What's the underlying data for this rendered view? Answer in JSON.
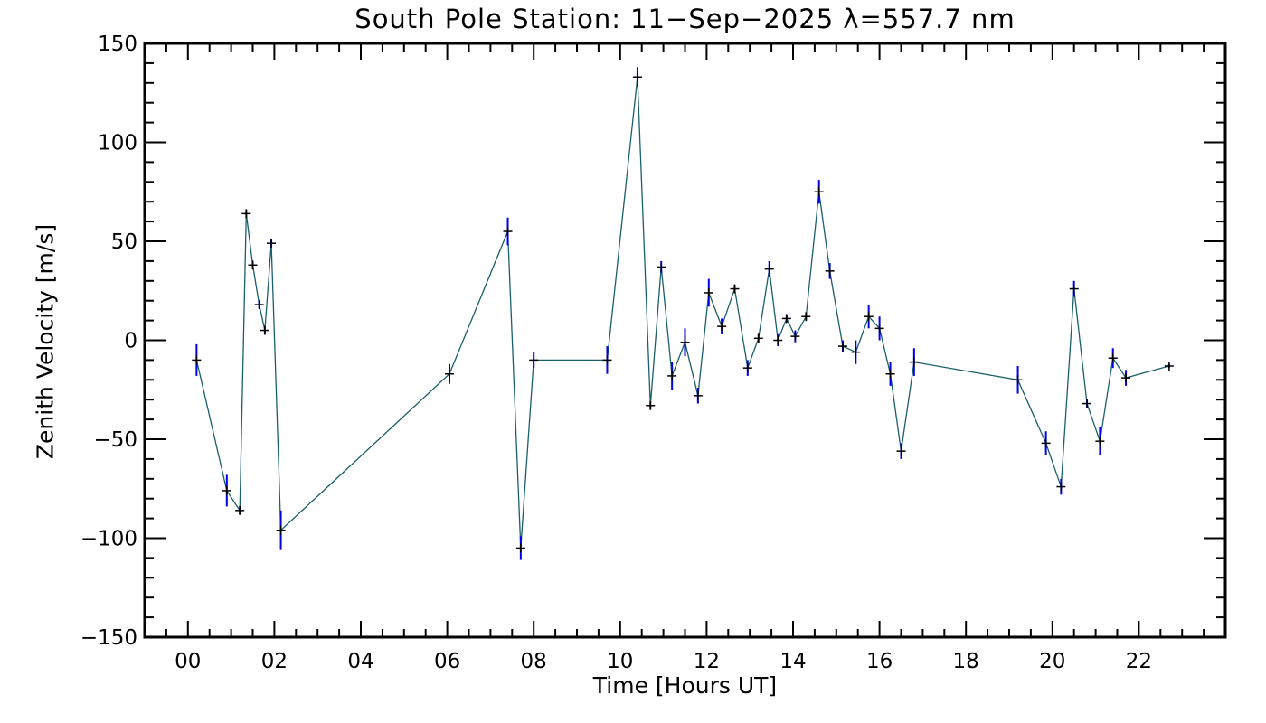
{
  "chart_data": {
    "type": "line",
    "title": "South Pole Station: 11−Sep−2025 λ=557.7 nm",
    "xlabel": "Time [Hours UT]",
    "ylabel": "Zenith Velocity [m/s]",
    "xlim": [
      -1,
      24
    ],
    "ylim": [
      -150,
      150
    ],
    "x_ticks": [
      0,
      2,
      4,
      6,
      8,
      10,
      12,
      14,
      16,
      18,
      20,
      22
    ],
    "x_tick_labels": [
      "00",
      "02",
      "04",
      "06",
      "08",
      "10",
      "12",
      "14",
      "16",
      "18",
      "20",
      "22"
    ],
    "y_ticks": [
      150,
      100,
      50,
      0,
      -50,
      -100,
      -150
    ],
    "y_tick_labels": [
      "150",
      "100",
      "50",
      "0",
      "−50",
      "−100",
      "−150"
    ],
    "grid": false,
    "colors": {
      "line": "#1a5f6a",
      "error_bar": "#0000ee",
      "marker": "#000000",
      "axis": "#000000"
    },
    "series": [
      {
        "points": [
          {
            "x": 0.2,
            "y": -10,
            "err": 8
          },
          {
            "x": 0.9,
            "y": -76,
            "err": 8
          },
          {
            "x": 1.2,
            "y": -86,
            "err": 2
          },
          {
            "x": 1.35,
            "y": 64,
            "err": 2
          },
          {
            "x": 1.5,
            "y": 38,
            "err": 2
          },
          {
            "x": 1.65,
            "y": 18,
            "err": 2
          },
          {
            "x": 1.78,
            "y": 5,
            "err": 2
          },
          {
            "x": 1.93,
            "y": 49,
            "err": 2
          },
          {
            "x": 2.15,
            "y": -96,
            "err": 10
          },
          {
            "x": 6.05,
            "y": -17,
            "err": 5
          },
          {
            "x": 7.4,
            "y": 55,
            "err": 7
          },
          {
            "x": 7.7,
            "y": -105,
            "err": 6
          },
          {
            "x": 8.0,
            "y": -10,
            "err": 4
          },
          {
            "x": 9.7,
            "y": -10,
            "err": 7
          },
          {
            "x": 10.4,
            "y": 133,
            "err": 5
          },
          {
            "x": 10.7,
            "y": -33,
            "err": 2
          },
          {
            "x": 10.95,
            "y": 37,
            "err": 3
          },
          {
            "x": 11.2,
            "y": -18,
            "err": 7
          },
          {
            "x": 11.5,
            "y": -1,
            "err": 7
          },
          {
            "x": 11.8,
            "y": -28,
            "err": 4
          },
          {
            "x": 12.05,
            "y": 24,
            "err": 7
          },
          {
            "x": 12.35,
            "y": 7,
            "err": 4
          },
          {
            "x": 12.65,
            "y": 26,
            "err": 2
          },
          {
            "x": 12.95,
            "y": -14,
            "err": 4
          },
          {
            "x": 13.2,
            "y": 1,
            "err": 2
          },
          {
            "x": 13.45,
            "y": 36,
            "err": 4
          },
          {
            "x": 13.65,
            "y": 0,
            "err": 3
          },
          {
            "x": 13.85,
            "y": 11,
            "err": 2
          },
          {
            "x": 14.05,
            "y": 2,
            "err": 3
          },
          {
            "x": 14.3,
            "y": 12,
            "err": 2
          },
          {
            "x": 14.6,
            "y": 75,
            "err": 6
          },
          {
            "x": 14.85,
            "y": 35,
            "err": 4
          },
          {
            "x": 15.15,
            "y": -3,
            "err": 3
          },
          {
            "x": 15.45,
            "y": -6,
            "err": 6
          },
          {
            "x": 15.75,
            "y": 12,
            "err": 6
          },
          {
            "x": 16.0,
            "y": 6,
            "err": 6
          },
          {
            "x": 16.25,
            "y": -17,
            "err": 6
          },
          {
            "x": 16.5,
            "y": -56,
            "err": 4
          },
          {
            "x": 16.8,
            "y": -11,
            "err": 7
          },
          {
            "x": 19.2,
            "y": -20,
            "err": 7
          },
          {
            "x": 19.85,
            "y": -52,
            "err": 6
          },
          {
            "x": 20.2,
            "y": -74,
            "err": 4
          },
          {
            "x": 20.5,
            "y": 26,
            "err": 4
          },
          {
            "x": 20.8,
            "y": -32,
            "err": 2
          },
          {
            "x": 21.1,
            "y": -51,
            "err": 7
          },
          {
            "x": 21.4,
            "y": -9,
            "err": 5
          },
          {
            "x": 21.7,
            "y": -19,
            "err": 4
          },
          {
            "x": 22.7,
            "y": -13,
            "err": 1
          }
        ]
      }
    ]
  }
}
